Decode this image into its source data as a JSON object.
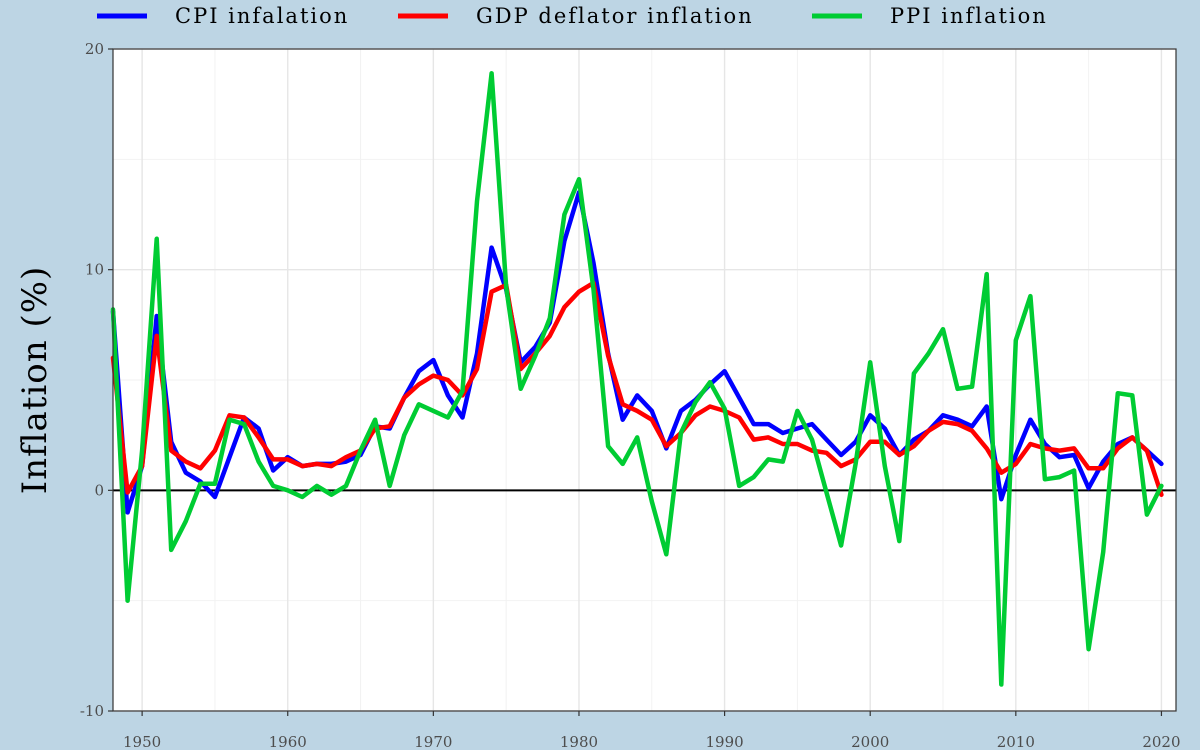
{
  "chart_data": {
    "type": "line",
    "xlabel": "",
    "ylabel": "Inflation (%)",
    "xlim": [
      1948,
      2021
    ],
    "ylim": [
      -10,
      20
    ],
    "x_ticks": [
      1950,
      1960,
      1970,
      1980,
      1990,
      2000,
      2010,
      2020
    ],
    "y_ticks": [
      -10,
      0,
      10,
      20
    ],
    "grid": true,
    "legend_position": "top",
    "x": [
      1948,
      1949,
      1950,
      1951,
      1952,
      1953,
      1954,
      1955,
      1956,
      1957,
      1958,
      1959,
      1960,
      1961,
      1962,
      1963,
      1964,
      1965,
      1966,
      1967,
      1968,
      1969,
      1970,
      1971,
      1972,
      1973,
      1974,
      1975,
      1976,
      1977,
      1978,
      1979,
      1980,
      1981,
      1982,
      1983,
      1984,
      1985,
      1986,
      1987,
      1988,
      1989,
      1990,
      1991,
      1992,
      1993,
      1994,
      1995,
      1996,
      1997,
      1998,
      1999,
      2000,
      2001,
      2002,
      2003,
      2004,
      2005,
      2006,
      2007,
      2008,
      2009,
      2010,
      2011,
      2012,
      2013,
      2014,
      2015,
      2016,
      2017,
      2018,
      2019,
      2020
    ],
    "series": [
      {
        "name": "CPI infalation",
        "color": "#0000ff",
        "values": [
          8.1,
          -1.0,
          1.1,
          7.9,
          2.2,
          0.8,
          0.4,
          -0.3,
          1.5,
          3.3,
          2.8,
          0.9,
          1.5,
          1.1,
          1.2,
          1.2,
          1.3,
          1.6,
          2.9,
          2.8,
          4.2,
          5.4,
          5.9,
          4.3,
          3.3,
          6.2,
          11.0,
          9.1,
          5.8,
          6.5,
          7.6,
          11.3,
          13.5,
          10.3,
          6.2,
          3.2,
          4.3,
          3.6,
          1.9,
          3.6,
          4.1,
          4.8,
          5.4,
          4.2,
          3.0,
          3.0,
          2.6,
          2.8,
          3.0,
          2.3,
          1.6,
          2.2,
          3.4,
          2.8,
          1.6,
          2.3,
          2.7,
          3.4,
          3.2,
          2.9,
          3.8,
          -0.4,
          1.6,
          3.2,
          2.1,
          1.5,
          1.6,
          0.1,
          1.3,
          2.1,
          2.4,
          1.8,
          1.2
        ]
      },
      {
        "name": "GDP deflator inflation",
        "color": "#ff0000",
        "values": [
          6.0,
          -0.1,
          1.1,
          7.0,
          1.8,
          1.3,
          1.0,
          1.8,
          3.4,
          3.3,
          2.4,
          1.4,
          1.4,
          1.1,
          1.2,
          1.1,
          1.5,
          1.8,
          2.8,
          2.9,
          4.2,
          4.8,
          5.2,
          5.0,
          4.3,
          5.5,
          9.0,
          9.3,
          5.5,
          6.2,
          7.0,
          8.3,
          9.0,
          9.4,
          6.1,
          3.9,
          3.6,
          3.2,
          2.0,
          2.6,
          3.4,
          3.8,
          3.6,
          3.3,
          2.3,
          2.4,
          2.1,
          2.1,
          1.8,
          1.7,
          1.1,
          1.4,
          2.2,
          2.2,
          1.6,
          2.0,
          2.7,
          3.1,
          3.0,
          2.7,
          1.9,
          0.8,
          1.2,
          2.1,
          1.9,
          1.8,
          1.9,
          1.0,
          1.0,
          1.9,
          2.4,
          1.8,
          -0.2
        ]
      },
      {
        "name": "PPI inflation",
        "color": "#00cc33",
        "values": [
          8.2,
          -5.0,
          1.8,
          11.4,
          -2.7,
          -1.4,
          0.3,
          0.3,
          3.2,
          3.0,
          1.3,
          0.2,
          0.0,
          -0.3,
          0.2,
          -0.2,
          0.2,
          1.8,
          3.2,
          0.2,
          2.5,
          3.9,
          3.6,
          3.3,
          4.5,
          13.1,
          18.9,
          9.2,
          4.6,
          6.1,
          7.8,
          12.5,
          14.1,
          9.1,
          2.0,
          1.2,
          2.4,
          -0.5,
          -2.9,
          2.6,
          4.0,
          4.9,
          3.7,
          0.2,
          0.6,
          1.4,
          1.3,
          3.6,
          2.3,
          -0.1,
          -2.5,
          1.2,
          5.8,
          1.1,
          -2.3,
          5.3,
          6.2,
          7.3,
          4.6,
          4.7,
          9.8,
          -8.8,
          6.8,
          8.8,
          0.5,
          0.6,
          0.9,
          -7.2,
          -2.8,
          4.4,
          4.3,
          -1.1,
          0.2
        ]
      }
    ]
  }
}
